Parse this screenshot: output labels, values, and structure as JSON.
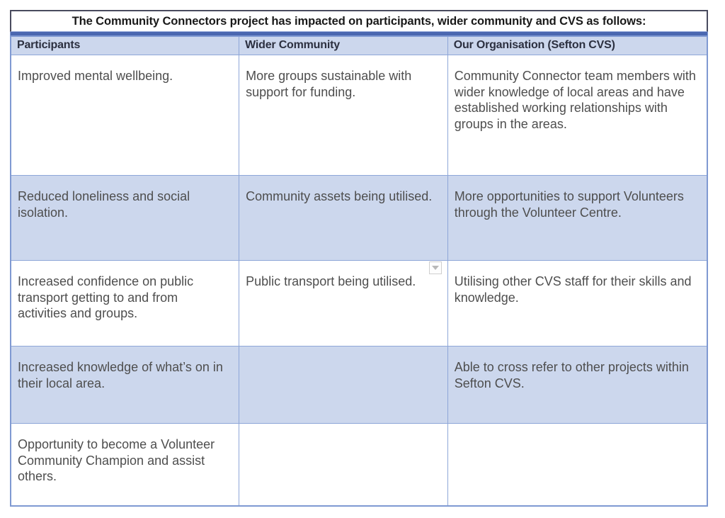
{
  "table": {
    "title": "The Community Connectors project has impacted on participants, wider community and CVS as follows:",
    "columns": [
      "Participants",
      "Wider Community",
      "Our Organisation (Sefton CVS)"
    ],
    "rows": [
      {
        "cells": [
          "Improved mental wellbeing.",
          "More groups sustainable with support for funding.",
          "Community Connector team members with wider knowledge of local areas and have established working relationships with groups in the areas."
        ],
        "shaded": false
      },
      {
        "cells": [
          "Reduced loneliness and social isolation.",
          "Community assets being utilised.",
          "More opportunities to support Volunteers through the Volunteer Centre."
        ],
        "shaded": true
      },
      {
        "cells": [
          "Increased confidence on public transport getting to and from activities and groups.",
          "Public transport being utilised.",
          "Utilising other CVS staff for their skills and knowledge."
        ],
        "shaded": false
      },
      {
        "cells": [
          "Increased knowledge of what’s on in their local area.",
          "",
          "Able to cross refer to other projects within Sefton CVS."
        ],
        "shaded": true
      },
      {
        "cells": [
          "Opportunity to become a Volunteer Community Champion and assist others.",
          "",
          ""
        ],
        "shaded": false
      }
    ],
    "icons": {
      "dropdown_marker": "dropdown-arrow-icon"
    },
    "colors": {
      "band_blue": "#4a67b0",
      "header_bg": "#ccd7ed",
      "shaded_row_bg": "#ccd7ed",
      "cell_border": "#8ea6d8",
      "outer_border": "#7f99d2",
      "title_border": "#494b5e",
      "header_text": "#2c3040",
      "body_text": "#4e4e4e",
      "title_text": "#191919"
    }
  }
}
